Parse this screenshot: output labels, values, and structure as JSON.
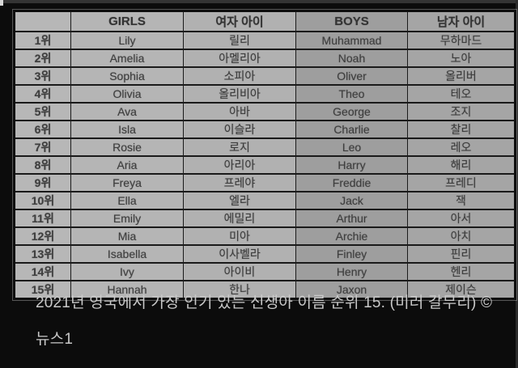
{
  "colors": {
    "background": "#0c0c0c",
    "table_light_column": "#b5b5b5",
    "table_dark_column": "#9e9e9e",
    "table_border": "#1a1a1a",
    "table_text": "#3e3e3e",
    "caption_text": "#c9c9c9"
  },
  "table": {
    "headers": {
      "rank": "",
      "girls_en": "GIRLS",
      "girls_ko": "여자 아이",
      "boys_en": "BOYS",
      "boys_ko": "남자 아이"
    },
    "rows": [
      {
        "rank": "1위",
        "girl_en": "Lily",
        "girl_ko": "릴리",
        "boy_en": "Muhammad",
        "boy_ko": "무하마드"
      },
      {
        "rank": "2위",
        "girl_en": "Amelia",
        "girl_ko": "아멜리아",
        "boy_en": "Noah",
        "boy_ko": "노아"
      },
      {
        "rank": "3위",
        "girl_en": "Sophia",
        "girl_ko": "소피아",
        "boy_en": "Oliver",
        "boy_ko": "올리버"
      },
      {
        "rank": "4위",
        "girl_en": "Olivia",
        "girl_ko": "올리비아",
        "boy_en": "Theo",
        "boy_ko": "테오"
      },
      {
        "rank": "5위",
        "girl_en": "Ava",
        "girl_ko": "아바",
        "boy_en": "George",
        "boy_ko": "조지"
      },
      {
        "rank": "6위",
        "girl_en": "Isla",
        "girl_ko": "이슬라",
        "boy_en": "Charlie",
        "boy_ko": "찰리"
      },
      {
        "rank": "7위",
        "girl_en": "Rosie",
        "girl_ko": "로지",
        "boy_en": "Leo",
        "boy_ko": "레오"
      },
      {
        "rank": "8위",
        "girl_en": "Aria",
        "girl_ko": "아리아",
        "boy_en": "Harry",
        "boy_ko": "해리"
      },
      {
        "rank": "9위",
        "girl_en": "Freya",
        "girl_ko": "프레야",
        "boy_en": "Freddie",
        "boy_ko": "프레디"
      },
      {
        "rank": "10위",
        "girl_en": "Ella",
        "girl_ko": "엘라",
        "boy_en": "Jack",
        "boy_ko": "잭"
      },
      {
        "rank": "11위",
        "girl_en": "Emily",
        "girl_ko": "에밀리",
        "boy_en": "Arthur",
        "boy_ko": "아서"
      },
      {
        "rank": "12위",
        "girl_en": "Mia",
        "girl_ko": "미아",
        "boy_en": "Archie",
        "boy_ko": "아치"
      },
      {
        "rank": "13위",
        "girl_en": "Isabella",
        "girl_ko": "이사벨라",
        "boy_en": "Finley",
        "boy_ko": "핀리"
      },
      {
        "rank": "14위",
        "girl_en": "Ivy",
        "girl_ko": "아이비",
        "boy_en": "Henry",
        "boy_ko": "헨리"
      },
      {
        "rank": "15위",
        "girl_en": "Hannah",
        "girl_ko": "한나",
        "boy_en": "Jaxon",
        "boy_ko": "제이슨"
      }
    ]
  },
  "caption": {
    "text": "2021년 영국에서 가장 인기 있는 신생아 이름 순위 15. (미러 갈무리) © 뉴스1"
  }
}
